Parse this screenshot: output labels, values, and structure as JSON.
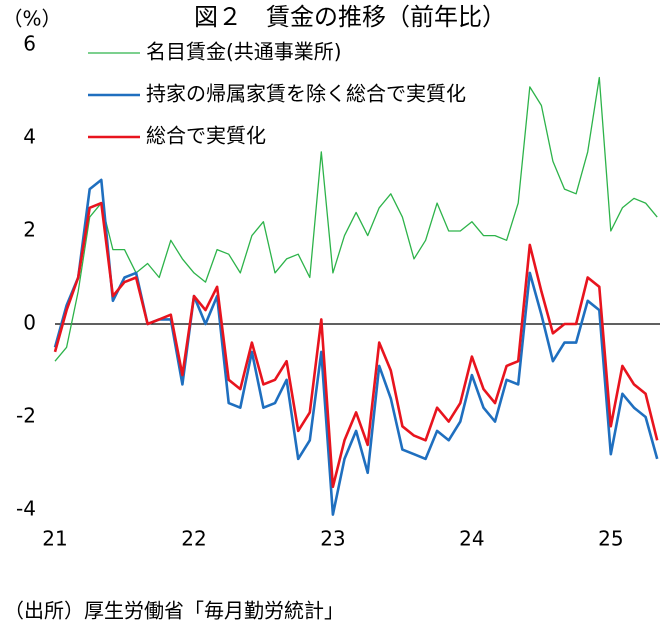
{
  "chart_data": {
    "type": "line",
    "title": "図２　賃金の推移（前年比）",
    "y_label": "（%）",
    "source": "（出所）厚生労働省「毎月勤労統計」",
    "categories": [
      "21",
      null,
      null,
      null,
      null,
      null,
      null,
      null,
      null,
      null,
      null,
      null,
      "22",
      null,
      null,
      null,
      null,
      null,
      null,
      null,
      null,
      null,
      null,
      null,
      "23",
      null,
      null,
      null,
      null,
      null,
      null,
      null,
      null,
      null,
      null,
      null,
      "24",
      null,
      null,
      null,
      null,
      null,
      null,
      null,
      null,
      null,
      null,
      null,
      "25",
      null,
      null,
      null,
      null
    ],
    "series": [
      {
        "name": "名目賃金(共通事業所)",
        "color": "#2db34a",
        "values": [
          -0.8,
          -0.5,
          0.7,
          2.3,
          2.6,
          1.6,
          1.6,
          1.1,
          1.3,
          1.0,
          1.8,
          1.4,
          1.1,
          0.9,
          1.6,
          1.5,
          1.1,
          1.9,
          2.2,
          1.1,
          1.4,
          1.5,
          1.0,
          3.7,
          1.1,
          1.9,
          2.4,
          1.9,
          2.5,
          2.8,
          2.3,
          1.4,
          1.8,
          2.6,
          2.0,
          2.0,
          2.2,
          1.9,
          1.9,
          1.8,
          2.6,
          5.1,
          4.7,
          3.5,
          2.9,
          2.8,
          3.7,
          5.3,
          2.0,
          2.5,
          2.7,
          2.6,
          2.3
        ]
      },
      {
        "name": "持家の帰属家賃を除く総合で実質化",
        "color": "#1f6fbf",
        "values": [
          -0.5,
          0.4,
          1.0,
          2.9,
          3.1,
          0.5,
          1.0,
          1.1,
          0.0,
          0.1,
          0.1,
          -1.3,
          0.6,
          0.0,
          0.6,
          -1.7,
          -1.8,
          -0.6,
          -1.8,
          -1.7,
          -1.2,
          -2.9,
          -2.5,
          -0.6,
          -4.1,
          -2.9,
          -2.3,
          -3.2,
          -0.9,
          -1.6,
          -2.7,
          -2.8,
          -2.9,
          -2.3,
          -2.5,
          -2.1,
          -1.1,
          -1.8,
          -2.1,
          -1.2,
          -1.3,
          1.1,
          0.2,
          -0.8,
          -0.4,
          -0.4,
          0.5,
          0.3,
          -2.8,
          -1.5,
          -1.8,
          -2.0,
          -2.9
        ]
      },
      {
        "name": "総合で実質化",
        "color": "#e8141e",
        "values": [
          -0.6,
          0.3,
          1.0,
          2.5,
          2.6,
          0.6,
          0.9,
          1.0,
          0.0,
          0.1,
          0.2,
          -1.1,
          0.6,
          0.3,
          0.8,
          -1.2,
          -1.4,
          -0.4,
          -1.3,
          -1.2,
          -0.8,
          -2.3,
          -1.9,
          0.1,
          -3.5,
          -2.5,
          -1.9,
          -2.6,
          -0.4,
          -1.0,
          -2.2,
          -2.4,
          -2.5,
          -1.8,
          -2.1,
          -1.7,
          -0.7,
          -1.4,
          -1.7,
          -0.9,
          -0.8,
          1.7,
          0.7,
          -0.2,
          0.0,
          0.0,
          1.0,
          0.8,
          -2.2,
          -0.9,
          -1.3,
          -1.5,
          -2.5
        ]
      }
    ],
    "ylim": [
      -4,
      6
    ],
    "yticks": [
      -4,
      -2,
      0,
      2,
      4,
      6
    ],
    "grid": false,
    "legend": "upper left"
  }
}
